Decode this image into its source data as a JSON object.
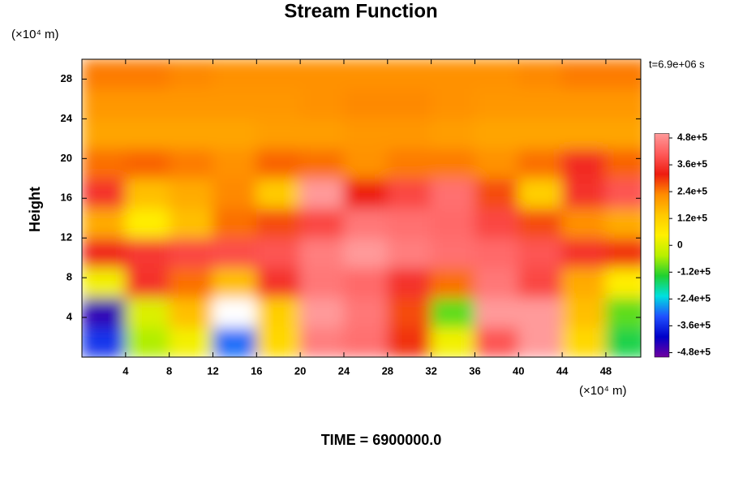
{
  "chart_data": {
    "type": "contour",
    "title": "Stream Function",
    "y_unit": "(×10⁴ m)",
    "x_unit": "(×10⁴ m)",
    "ylabel": "Height",
    "time_label": "t=6.9e+06 s",
    "footer": "TIME = 6900000.0",
    "xlim": [
      0,
      51.2
    ],
    "ylim": [
      0,
      30
    ],
    "xticks": [
      4,
      8,
      12,
      16,
      20,
      24,
      28,
      32,
      36,
      40,
      44,
      48
    ],
    "yticks": [
      4,
      8,
      12,
      16,
      20,
      24,
      28
    ],
    "clim": [
      -500000,
      500000
    ],
    "cticks": [
      {
        "value": 480000,
        "label": "4.8e+5"
      },
      {
        "value": 360000,
        "label": "3.6e+5"
      },
      {
        "value": 240000,
        "label": "2.4e+5"
      },
      {
        "value": 120000,
        "label": "1.2e+5"
      },
      0,
      {
        "value": -120000,
        "label": "-1.2e+5"
      },
      {
        "value": -240000,
        "label": "-2.4e+5"
      },
      {
        "value": -360000,
        "label": "-3.6e+5"
      },
      {
        "value": -480000,
        "label": "-4.8e+5"
      }
    ],
    "colormap": [
      "#7000a0",
      "#0000c8",
      "#2050ff",
      "#00e0e0",
      "#20d030",
      "#b8f000",
      "#fff000",
      "#ffc800",
      "#ff8c00",
      "#ee1c10",
      "#ff5a5a",
      "#ff9a9a"
    ],
    "x": [
      2,
      6,
      10,
      14,
      18,
      22,
      26,
      30,
      34,
      38,
      42,
      46,
      50
    ],
    "y": [
      1.5,
      4.5,
      7.5,
      10.5,
      13.5,
      16.5,
      19.5,
      22.5,
      25.5,
      28.5
    ],
    "z": [
      [
        -350000,
        -50000,
        30000,
        -300000,
        100000,
        460000,
        440000,
        300000,
        30000,
        400000,
        500000,
        100000,
        -150000
      ],
      [
        -450000,
        0,
        150000,
        -520000,
        120000,
        500000,
        450000,
        280000,
        -100000,
        500000,
        500000,
        150000,
        -100000
      ],
      [
        30000,
        350000,
        250000,
        150000,
        350000,
        450000,
        430000,
        350000,
        250000,
        450000,
        380000,
        180000,
        50000
      ],
      [
        330000,
        360000,
        380000,
        390000,
        400000,
        460000,
        500000,
        460000,
        440000,
        430000,
        400000,
        350000,
        300000
      ],
      [
        180000,
        50000,
        150000,
        250000,
        280000,
        380000,
        450000,
        440000,
        430000,
        380000,
        280000,
        220000,
        180000
      ],
      [
        350000,
        150000,
        180000,
        230000,
        130000,
        500000,
        320000,
        380000,
        440000,
        280000,
        120000,
        350000,
        400000
      ],
      [
        250000,
        260000,
        240000,
        220000,
        260000,
        250000,
        220000,
        240000,
        240000,
        220000,
        250000,
        340000,
        260000
      ],
      [
        190000,
        190000,
        190000,
        190000,
        200000,
        200000,
        210000,
        210000,
        200000,
        190000,
        190000,
        190000,
        190000
      ],
      [
        210000,
        210000,
        210000,
        210000,
        210000,
        220000,
        230000,
        230000,
        220000,
        210000,
        210000,
        210000,
        210000
      ],
      [
        240000,
        240000,
        230000,
        220000,
        220000,
        220000,
        220000,
        220000,
        220000,
        220000,
        230000,
        240000,
        240000
      ]
    ]
  }
}
